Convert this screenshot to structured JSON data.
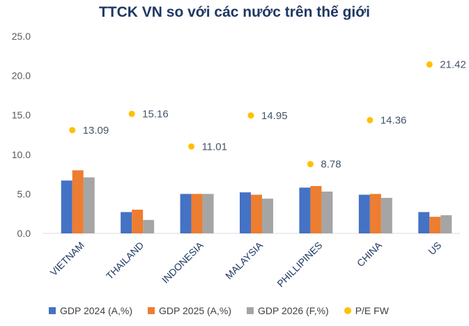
{
  "chart_data": {
    "type": "bar",
    "title": "TTCK VN so với các nước trên thế giới",
    "categories": [
      "VIETNAM",
      "THAILAND",
      "INDONESIA",
      "MALAYSIA",
      "PHILLIPINES",
      "CHINA",
      "US"
    ],
    "series": [
      {
        "name": "GDP 2024 (A,%)",
        "type": "bar",
        "color": "#4472c4",
        "values": [
          6.7,
          2.7,
          5.0,
          5.2,
          5.8,
          4.9,
          2.7
        ]
      },
      {
        "name": "GDP 2025 (A,%)",
        "type": "bar",
        "color": "#ed7d31",
        "values": [
          8.0,
          3.0,
          5.0,
          4.9,
          6.0,
          5.0,
          2.1
        ]
      },
      {
        "name": "GDP 2026 (F,%)",
        "type": "bar",
        "color": "#a5a5a5",
        "values": [
          7.1,
          1.7,
          5.0,
          4.4,
          5.3,
          4.5,
          2.3
        ]
      },
      {
        "name": "P/E FW",
        "type": "scatter",
        "color": "#ffc000",
        "values": [
          13.09,
          15.16,
          11.01,
          14.95,
          8.78,
          14.36,
          21.42
        ]
      }
    ],
    "data_labels": [
      "13.09",
      "15.16",
      "11.01",
      "14.95",
      "8.78",
      "14.36",
      "21.42"
    ],
    "y_ticks": [
      "0.0",
      "5.0",
      "10.0",
      "15.0",
      "20.0",
      "25.0"
    ],
    "ylim": [
      0,
      25
    ],
    "grid": false,
    "legend_position": "bottom"
  }
}
